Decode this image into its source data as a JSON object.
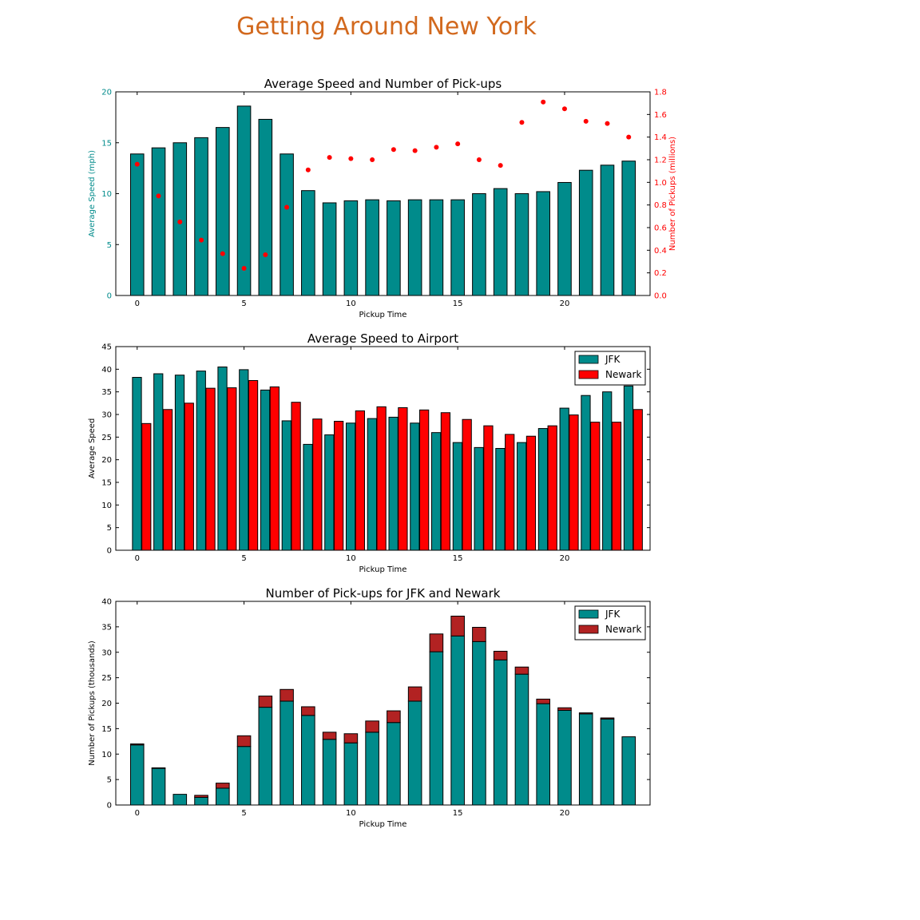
{
  "page": {
    "title": "Getting Around New York",
    "title_color": "#d2691e",
    "colors": {
      "teal": "#008b8b",
      "red": "#ff0000",
      "brown": "#b22222",
      "axis_red": "#ff0000",
      "axis_teal": "#008b8b"
    }
  },
  "chart_data": [
    {
      "type": "bar",
      "title": "Average Speed and Number of Pick-ups",
      "xlabel": "Pickup Time",
      "ylabel": "Average Speed (mph)",
      "y2label": "Number of Pickups (millions)",
      "xlim": [
        -1,
        24
      ],
      "ylim": [
        0,
        20
      ],
      "y2lim": [
        0,
        1.8
      ],
      "xticks": [
        0,
        5,
        10,
        15,
        20
      ],
      "yticks": [
        0,
        5,
        10,
        15,
        20
      ],
      "y2ticks": [
        0.0,
        0.2,
        0.4,
        0.6,
        0.8,
        1.0,
        1.2,
        1.4,
        1.6,
        1.8
      ],
      "x": [
        0,
        1,
        2,
        3,
        4,
        5,
        6,
        7,
        8,
        9,
        10,
        11,
        12,
        13,
        14,
        15,
        16,
        17,
        18,
        19,
        20,
        21,
        22,
        23
      ],
      "series": [
        {
          "name": "Average Speed",
          "kind": "bar",
          "axis": "left",
          "values": [
            13.9,
            14.5,
            15.0,
            15.5,
            16.5,
            18.6,
            17.3,
            13.9,
            10.3,
            9.1,
            9.3,
            9.4,
            9.3,
            9.4,
            9.4,
            9.4,
            10.0,
            10.5,
            10.0,
            10.2,
            11.1,
            12.3,
            12.8,
            13.2
          ]
        },
        {
          "name": "Number of Pickups",
          "kind": "scatter",
          "axis": "right",
          "values": [
            1.16,
            0.88,
            0.65,
            0.49,
            0.37,
            0.24,
            0.36,
            0.78,
            1.11,
            1.22,
            1.21,
            1.2,
            1.29,
            1.28,
            1.31,
            1.34,
            1.2,
            1.15,
            1.53,
            1.71,
            1.65,
            1.54,
            1.52,
            1.4
          ]
        }
      ]
    },
    {
      "type": "bar",
      "title": "Average Speed to Airport",
      "xlabel": "Pickup Time",
      "ylabel": "Average Speed",
      "xlim": [
        -1,
        24
      ],
      "ylim": [
        0,
        45
      ],
      "xticks": [
        0,
        5,
        10,
        15,
        20
      ],
      "yticks": [
        0,
        5,
        10,
        15,
        20,
        25,
        30,
        35,
        40,
        45
      ],
      "legend": "top-right",
      "x": [
        0,
        1,
        2,
        3,
        4,
        5,
        6,
        7,
        8,
        9,
        10,
        11,
        12,
        13,
        14,
        15,
        16,
        17,
        18,
        19,
        20,
        21,
        22,
        23
      ],
      "series": [
        {
          "name": "JFK",
          "values": [
            38.2,
            39.0,
            38.7,
            39.6,
            40.5,
            39.9,
            35.4,
            28.6,
            23.4,
            25.5,
            28.1,
            29.1,
            29.4,
            28.1,
            26.0,
            23.8,
            22.7,
            22.5,
            23.8,
            26.9,
            31.4,
            34.2,
            35.0,
            36.3
          ]
        },
        {
          "name": "Newark",
          "values": [
            28.0,
            31.1,
            32.5,
            35.8,
            35.9,
            37.5,
            36.1,
            32.7,
            29.0,
            28.5,
            30.8,
            31.7,
            31.5,
            31.0,
            30.4,
            28.9,
            27.5,
            25.6,
            25.2,
            27.5,
            29.9,
            28.3,
            28.3,
            31.1
          ]
        }
      ]
    },
    {
      "type": "bar",
      "stacked": true,
      "title": "Number of Pick-ups for JFK and Newark",
      "xlabel": "Pickup Time",
      "ylabel": "Number of Pickups (thousands)",
      "xlim": [
        -1,
        24
      ],
      "ylim": [
        0,
        40
      ],
      "xticks": [
        0,
        5,
        10,
        15,
        20
      ],
      "yticks": [
        0,
        5,
        10,
        15,
        20,
        25,
        30,
        35,
        40
      ],
      "legend": "top-right",
      "x": [
        0,
        1,
        2,
        3,
        4,
        5,
        6,
        7,
        8,
        9,
        10,
        11,
        12,
        13,
        14,
        15,
        16,
        17,
        18,
        19,
        20,
        21,
        22,
        23
      ],
      "series": [
        {
          "name": "JFK",
          "values": [
            11.8,
            7.2,
            2.1,
            1.5,
            3.3,
            11.5,
            19.2,
            20.4,
            17.6,
            12.9,
            12.2,
            14.3,
            16.2,
            20.4,
            30.1,
            33.2,
            32.1,
            28.5,
            25.7,
            19.9,
            18.6,
            17.9,
            16.9,
            13.4
          ]
        },
        {
          "name": "Newark",
          "values": [
            0.2,
            0.1,
            0.0,
            0.4,
            1.0,
            2.1,
            2.2,
            2.3,
            1.7,
            1.4,
            1.8,
            2.2,
            2.3,
            2.8,
            3.5,
            3.9,
            2.8,
            1.7,
            1.4,
            0.9,
            0.5,
            0.2,
            0.2,
            0.0
          ]
        }
      ]
    }
  ]
}
